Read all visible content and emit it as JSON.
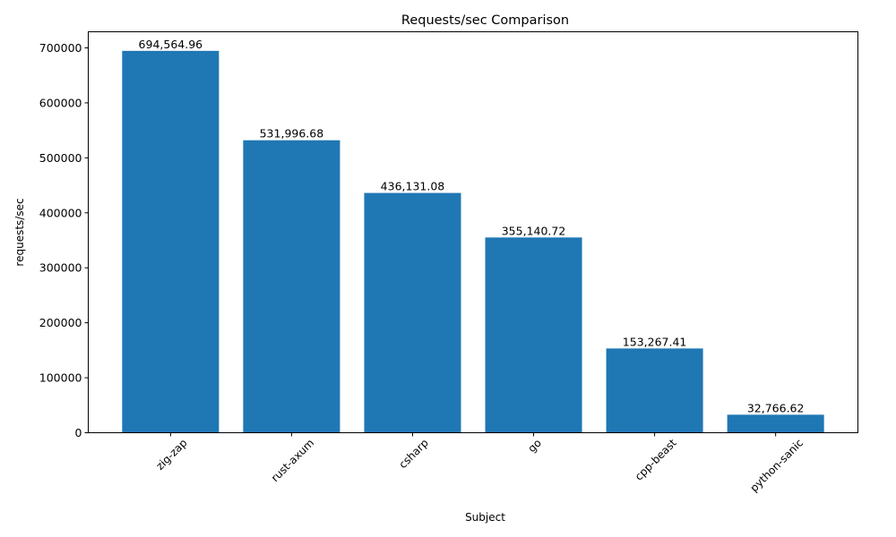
{
  "chart_data": {
    "type": "bar",
    "title": "Requests/sec Comparison",
    "xlabel": "Subject",
    "ylabel": "requests/sec",
    "categories": [
      "zig-zap",
      "rust-axum",
      "csharp",
      "go",
      "cpp-beast",
      "python-sanic"
    ],
    "values": [
      694564.96,
      531996.68,
      436131.08,
      355140.72,
      153267.41,
      32766.62
    ],
    "data_labels": [
      "694,564.96",
      "531,996.68",
      "436,131.08",
      "355,140.72",
      "153,267.41",
      "32,766.62"
    ],
    "ylim": [
      0,
      729293
    ],
    "yticks": [
      0,
      100000,
      200000,
      300000,
      400000,
      500000,
      600000,
      700000
    ],
    "ytick_labels": [
      "0",
      "100000",
      "200000",
      "300000",
      "400000",
      "500000",
      "600000",
      "700000"
    ],
    "xtick_rotation": 45,
    "grid": false,
    "bar_color": "#1f77b4"
  }
}
